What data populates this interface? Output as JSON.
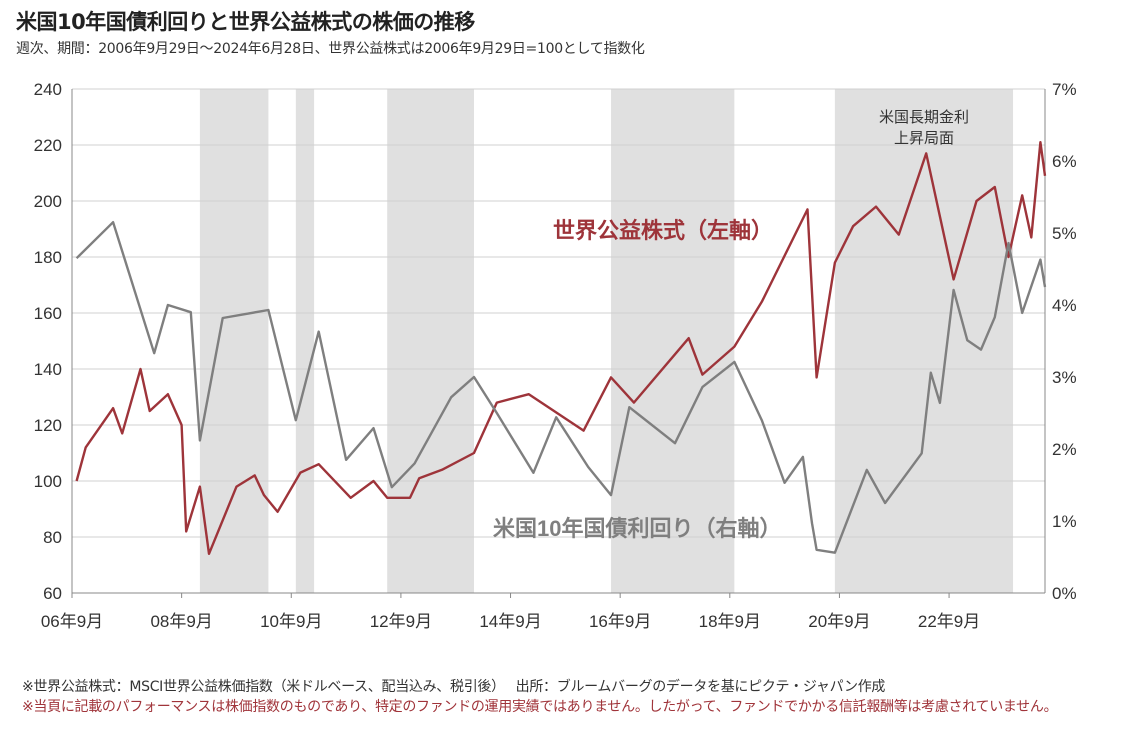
{
  "title": "米国10年国債利回りと世界公益株式の株価の推移",
  "subtitle": "週次、期間：2006年9月29日～2024年6月28日、世界公益株式は2006年9月29日=100として指数化",
  "footnotes": [
    "※世界公益株式：MSCI世界公益株価指数（米ドルベース、配当込み、税引後）　 出所：ブルームバーグのデータを基にピクテ・ジャパン作成",
    "※当頁に記載のパフォーマンスは株価指数のものであり、特定のファンドの運用実績ではありません。したがって、ファンドでかかる信託報酬等は考慮されていません。"
  ],
  "chart_data": {
    "type": "line",
    "title": "米国10年国債利回りと世界公益株式の株価の推移",
    "grid": true,
    "x_range": [
      "2006-09",
      "2024-06"
    ],
    "x_ticks": [
      {
        "date": "2006-09",
        "label": "06年9月"
      },
      {
        "date": "2008-09",
        "label": "08年9月"
      },
      {
        "date": "2010-09",
        "label": "10年9月"
      },
      {
        "date": "2012-09",
        "label": "12年9月"
      },
      {
        "date": "2014-09",
        "label": "14年9月"
      },
      {
        "date": "2016-09",
        "label": "16年9月"
      },
      {
        "date": "2018-09",
        "label": "18年9月"
      },
      {
        "date": "2020-09",
        "label": "20年9月"
      },
      {
        "date": "2022-09",
        "label": "22年9月"
      }
    ],
    "y_left": {
      "range": [
        60,
        240
      ],
      "ticks": [
        "60",
        "80",
        "100",
        "120",
        "140",
        "160",
        "180",
        "200",
        "220",
        "240"
      ]
    },
    "y_right": {
      "range": [
        0,
        7
      ],
      "ticks": [
        "0%",
        "1%",
        "2%",
        "3%",
        "4%",
        "5%",
        "6%",
        "7%"
      ]
    },
    "shaded_periods": [
      {
        "start": "2009-01",
        "end": "2010-04"
      },
      {
        "start": "2010-10",
        "end": "2011-02"
      },
      {
        "start": "2012-06",
        "end": "2014-01"
      },
      {
        "start": "2016-07",
        "end": "2018-10"
      },
      {
        "start": "2020-08",
        "end": "2023-11"
      }
    ],
    "shade_annotation": [
      "米国長期金利",
      "上昇局面"
    ],
    "shade_color": "#e0e0e0",
    "series": [
      {
        "name": "世界公益株式（左軸）",
        "axis": "left",
        "color": "#9e343a",
        "points": [
          [
            "2006-10",
            100
          ],
          [
            "2006-12",
            112
          ],
          [
            "2007-06",
            126
          ],
          [
            "2007-08",
            117
          ],
          [
            "2007-12",
            140
          ],
          [
            "2008-02",
            125
          ],
          [
            "2008-06",
            131
          ],
          [
            "2008-09",
            120
          ],
          [
            "2008-10",
            82
          ],
          [
            "2009-01",
            98
          ],
          [
            "2009-03",
            74
          ],
          [
            "2009-09",
            98
          ],
          [
            "2010-01",
            102
          ],
          [
            "2010-03",
            95
          ],
          [
            "2010-06",
            89
          ],
          [
            "2010-11",
            103
          ],
          [
            "2011-03",
            106
          ],
          [
            "2011-10",
            94
          ],
          [
            "2012-03",
            100
          ],
          [
            "2012-06",
            94
          ],
          [
            "2012-11",
            94
          ],
          [
            "2013-01",
            101
          ],
          [
            "2013-06",
            104
          ],
          [
            "2014-01",
            110
          ],
          [
            "2014-06",
            128
          ],
          [
            "2015-01",
            131
          ],
          [
            "2016-01",
            118
          ],
          [
            "2016-07",
            137
          ],
          [
            "2016-12",
            128
          ],
          [
            "2017-12",
            151
          ],
          [
            "2018-03",
            138
          ],
          [
            "2018-10",
            148
          ],
          [
            "2019-04",
            164
          ],
          [
            "2020-02",
            197
          ],
          [
            "2020-04",
            137
          ],
          [
            "2020-08",
            178
          ],
          [
            "2020-12",
            191
          ],
          [
            "2021-05",
            198
          ],
          [
            "2021-10",
            188
          ],
          [
            "2022-04",
            217
          ],
          [
            "2022-10",
            172
          ],
          [
            "2023-03",
            200
          ],
          [
            "2023-07",
            205
          ],
          [
            "2023-10",
            180
          ],
          [
            "2024-01",
            202
          ],
          [
            "2024-03",
            187
          ],
          [
            "2024-05",
            221
          ],
          [
            "2024-06",
            209
          ]
        ]
      },
      {
        "name": "米国10年国債利回り（右軸）",
        "axis": "right",
        "color": "#7f7f7f",
        "points": [
          [
            "2006-10",
            4.65
          ],
          [
            "2007-06",
            5.15
          ],
          [
            "2008-03",
            3.33
          ],
          [
            "2008-06",
            4.0
          ],
          [
            "2008-11",
            3.9
          ],
          [
            "2009-01",
            2.12
          ],
          [
            "2009-06",
            3.82
          ],
          [
            "2010-04",
            3.93
          ],
          [
            "2010-10",
            2.4
          ],
          [
            "2011-03",
            3.63
          ],
          [
            "2011-09",
            1.85
          ],
          [
            "2012-03",
            2.29
          ],
          [
            "2012-07",
            1.47
          ],
          [
            "2012-12",
            1.8
          ],
          [
            "2013-08",
            2.72
          ],
          [
            "2014-01",
            3.0
          ],
          [
            "2014-06",
            2.5
          ],
          [
            "2015-02",
            1.67
          ],
          [
            "2015-07",
            2.44
          ],
          [
            "2016-02",
            1.75
          ],
          [
            "2016-07",
            1.36
          ],
          [
            "2016-11",
            2.58
          ],
          [
            "2017-09",
            2.08
          ],
          [
            "2018-03",
            2.86
          ],
          [
            "2018-10",
            3.21
          ],
          [
            "2019-04",
            2.4
          ],
          [
            "2019-09",
            1.53
          ],
          [
            "2020-01",
            1.89
          ],
          [
            "2020-03",
            0.97
          ],
          [
            "2020-04",
            0.6
          ],
          [
            "2020-08",
            0.56
          ],
          [
            "2021-03",
            1.71
          ],
          [
            "2021-07",
            1.25
          ],
          [
            "2022-03",
            1.94
          ],
          [
            "2022-05",
            3.06
          ],
          [
            "2022-07",
            2.64
          ],
          [
            "2022-10",
            4.21
          ],
          [
            "2023-01",
            3.51
          ],
          [
            "2023-04",
            3.38
          ],
          [
            "2023-07",
            3.83
          ],
          [
            "2023-10",
            4.86
          ],
          [
            "2024-01",
            3.89
          ],
          [
            "2024-05",
            4.63
          ],
          [
            "2024-06",
            4.25
          ]
        ]
      }
    ]
  }
}
